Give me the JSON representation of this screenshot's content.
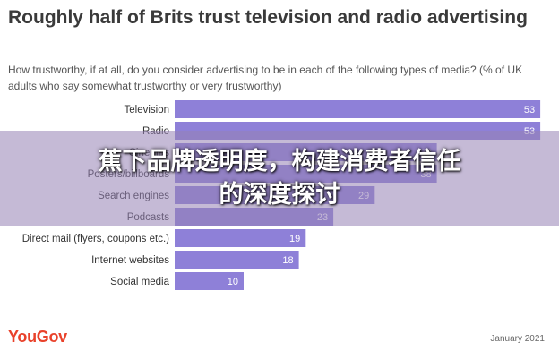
{
  "chart_data": {
    "type": "bar",
    "orientation": "horizontal",
    "title": "Roughly half of Brits trust television and radio advertising",
    "subtitle": "How trustworthy, if at all, do you consider advertising to be in each of the following types of media? (% of UK adults who say somewhat trustworthy or very trustworthy)",
    "categories": [
      "Television",
      "Radio",
      "Cinemas",
      "Posters/billboards",
      "Search engines",
      "Podcasts",
      "Direct mail (flyers, coupons etc.)",
      "Internet websites",
      "Social media"
    ],
    "values": [
      53,
      53,
      38,
      38,
      29,
      23,
      19,
      18,
      10
    ],
    "value_labels": [
      "53",
      "53",
      "38",
      "38",
      "29",
      "23",
      "19",
      "18",
      "10"
    ],
    "xlim": [
      0,
      60
    ],
    "grid": false,
    "legend": "none",
    "bar_color": "#8e80d8",
    "label_color": "#ffffff"
  },
  "footer": {
    "brand": "YouGov",
    "date": "January 2021"
  },
  "overlay": {
    "line1": "蕉下品牌透明度，构建消费者信任",
    "line2": "的深度探讨"
  },
  "colors": {
    "brand": "#e9412a",
    "title": "#3a3a3a"
  }
}
